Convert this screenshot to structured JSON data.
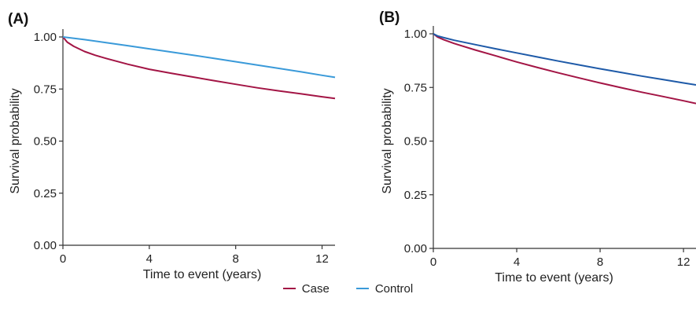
{
  "chart_data": [
    {
      "type": "line",
      "panel_label": "(A)",
      "xlabel": "Time to event (years)",
      "ylabel": "Survival probability",
      "xlim": [
        0,
        12.6
      ],
      "ylim": [
        0,
        1
      ],
      "x_ticks": [
        0,
        4,
        8,
        12
      ],
      "y_ticks": [
        0,
        0.25,
        0.5,
        0.75,
        1
      ],
      "x_tick_labels": [
        "0",
        "4",
        "8",
        "12"
      ],
      "y_tick_labels": [
        "0.00",
        "0.25",
        "0.50",
        "0.75",
        "1.00"
      ],
      "series": [
        {
          "name": "Case",
          "color": "#a31545",
          "x": [
            0,
            0.2,
            0.5,
            1,
            1.5,
            2,
            3,
            4,
            5,
            6,
            7,
            8,
            9,
            10,
            11,
            12,
            12.6
          ],
          "y": [
            1.0,
            0.975,
            0.955,
            0.93,
            0.912,
            0.897,
            0.869,
            0.845,
            0.826,
            0.808,
            0.79,
            0.773,
            0.756,
            0.741,
            0.727,
            0.713,
            0.705
          ]
        },
        {
          "name": "Control",
          "color": "#3a9ad9",
          "x": [
            0,
            1,
            2,
            3,
            4,
            5,
            6,
            7,
            8,
            9,
            10,
            11,
            12,
            12.6
          ],
          "y": [
            1.0,
            0.987,
            0.973,
            0.958,
            0.943,
            0.928,
            0.913,
            0.897,
            0.881,
            0.865,
            0.849,
            0.833,
            0.816,
            0.806
          ]
        }
      ]
    },
    {
      "type": "line",
      "panel_label": "(B)",
      "xlabel": "Time to event (years)",
      "ylabel": "Survival probability",
      "xlim": [
        0,
        12.6
      ],
      "ylim": [
        0,
        1
      ],
      "x_ticks": [
        0,
        4,
        8,
        12
      ],
      "y_ticks": [
        0,
        0.25,
        0.5,
        0.75,
        1
      ],
      "x_tick_labels": [
        "0",
        "4",
        "8",
        "12"
      ],
      "y_tick_labels": [
        "0.00",
        "0.25",
        "0.50",
        "0.75",
        "1.00"
      ],
      "series": [
        {
          "name": "Case",
          "color": "#a31545",
          "x": [
            0,
            0.2,
            0.5,
            1,
            2,
            3,
            4,
            5,
            6,
            7,
            8,
            9,
            10,
            11,
            12,
            12.6
          ],
          "y": [
            1.0,
            0.985,
            0.972,
            0.955,
            0.925,
            0.897,
            0.869,
            0.843,
            0.818,
            0.794,
            0.771,
            0.749,
            0.728,
            0.708,
            0.688,
            0.675
          ]
        },
        {
          "name": "Control",
          "color": "#1e5aa8",
          "x": [
            0,
            0.2,
            0.5,
            1,
            2,
            3,
            4,
            5,
            6,
            7,
            8,
            9,
            10,
            11,
            12,
            12.6
          ],
          "y": [
            1.0,
            0.99,
            0.982,
            0.97,
            0.95,
            0.93,
            0.911,
            0.892,
            0.873,
            0.855,
            0.837,
            0.82,
            0.803,
            0.787,
            0.771,
            0.762
          ]
        }
      ]
    }
  ],
  "legend": {
    "items": [
      {
        "label": "Case",
        "color": "#a31545"
      },
      {
        "label": "Control",
        "color": "#3a9ad9"
      }
    ]
  }
}
